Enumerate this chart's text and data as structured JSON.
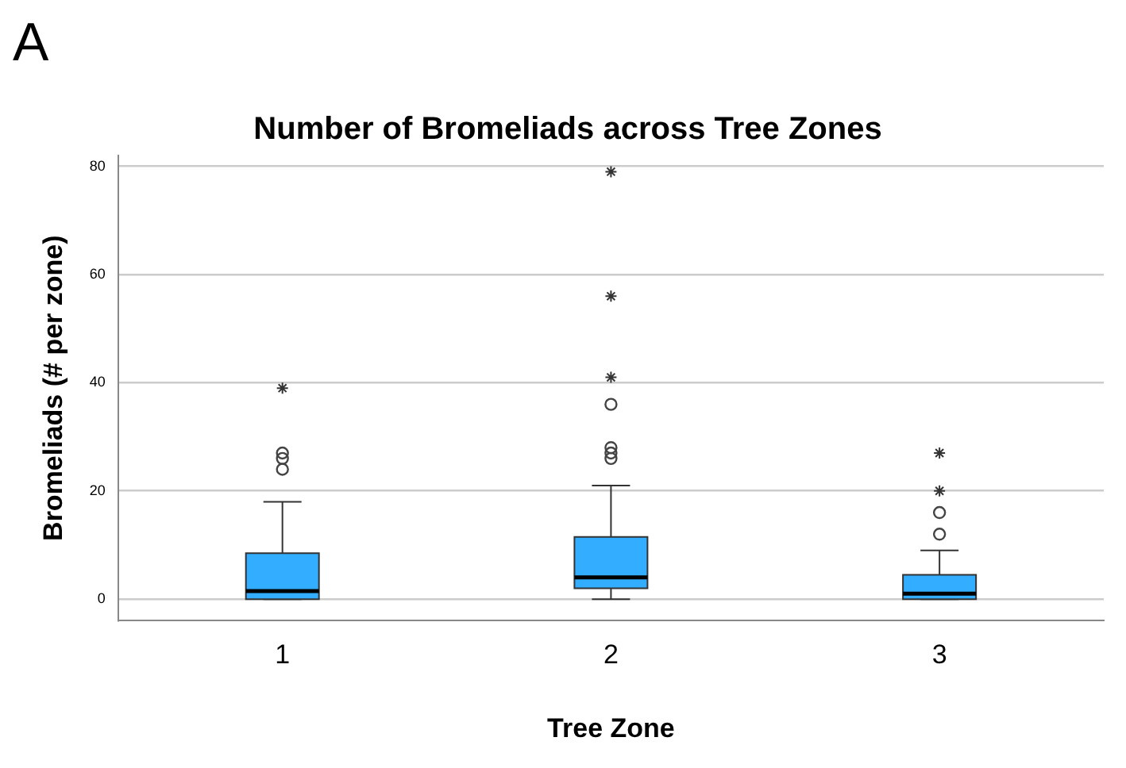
{
  "chart_data": {
    "type": "box",
    "title": "Number of Bromeliads across Tree Zones",
    "xlabel": "Tree Zone",
    "ylabel": "Bromeliads (# per zone)",
    "annotations": [
      "A"
    ],
    "categories": [
      "1",
      "2",
      "3"
    ],
    "ylim": [
      -4,
      82
    ],
    "yticks": [
      0,
      20,
      40,
      60,
      80
    ],
    "grid": "y",
    "series": [
      {
        "type": "box",
        "color": "#33adff",
        "boxes": [
          {
            "low": 0,
            "q1": 0,
            "median": 1.5,
            "q3": 8.5,
            "high": 18,
            "outliers": [
              24,
              26,
              27
            ]
          },
          {
            "low": 0,
            "q1": 2,
            "median": 4,
            "q3": 11.5,
            "high": 21,
            "outliers": [
              26,
              27,
              28,
              36
            ]
          },
          {
            "low": 0,
            "q1": 0,
            "median": 1,
            "q3": 4.5,
            "high": 9,
            "outliers": [
              12,
              16
            ]
          }
        ]
      },
      {
        "type": "scatter",
        "marker": "cross",
        "color": "#333333",
        "x": [
          "1",
          "2",
          "2",
          "2",
          "3",
          "3"
        ],
        "values": [
          39,
          41,
          56,
          79,
          20,
          27
        ]
      }
    ]
  }
}
